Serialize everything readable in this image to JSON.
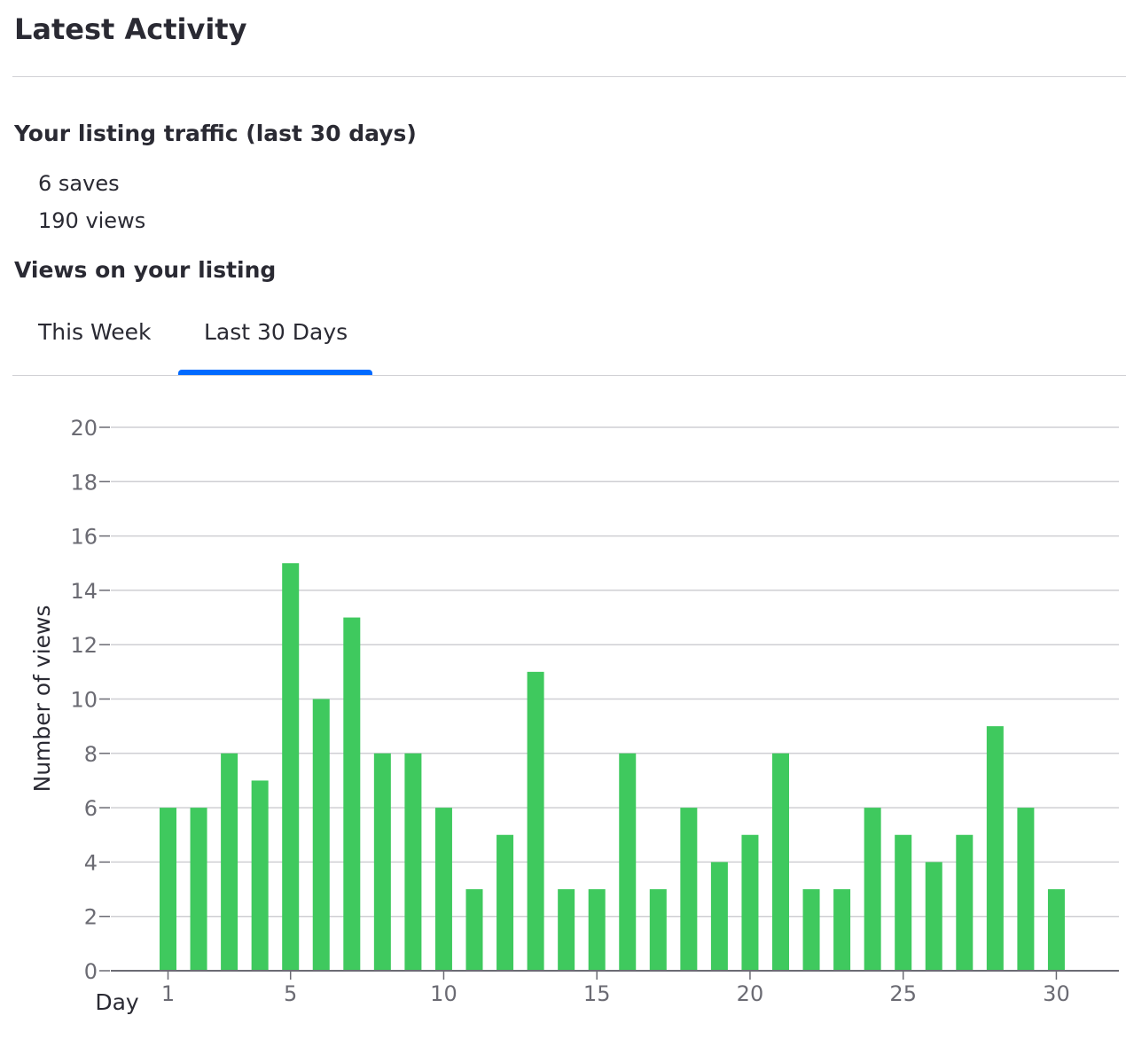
{
  "header": {
    "title": "Latest Activity"
  },
  "traffic": {
    "title": "Your listing traffic (last 30 days)",
    "saves": "6 saves",
    "views": "190 views"
  },
  "views_section": {
    "title": "Views on your listing",
    "tabs": [
      {
        "label": "This Week",
        "active": false
      },
      {
        "label": "Last 30 Days",
        "active": true
      }
    ]
  },
  "colors": {
    "bar": "#3fc95e",
    "accent": "#006aff",
    "grid": "#cfcfd3"
  },
  "chart_data": {
    "type": "bar",
    "xlabel": "Day",
    "ylabel": "Number of views",
    "ylim": [
      0,
      20
    ],
    "yticks": [
      0,
      2,
      4,
      6,
      8,
      10,
      12,
      14,
      16,
      18,
      20
    ],
    "xticks": [
      1,
      5,
      10,
      15,
      20,
      25,
      30
    ],
    "grid": true,
    "categories": [
      1,
      2,
      3,
      4,
      5,
      6,
      7,
      8,
      9,
      10,
      11,
      12,
      13,
      14,
      15,
      16,
      17,
      18,
      19,
      20,
      21,
      22,
      23,
      24,
      25,
      26,
      27,
      28,
      29,
      30
    ],
    "values": [
      6,
      6,
      8,
      7,
      15,
      10,
      13,
      8,
      8,
      6,
      3,
      5,
      11,
      3,
      3,
      8,
      3,
      6,
      4,
      5,
      8,
      3,
      3,
      6,
      5,
      4,
      5,
      9,
      6,
      3
    ]
  }
}
